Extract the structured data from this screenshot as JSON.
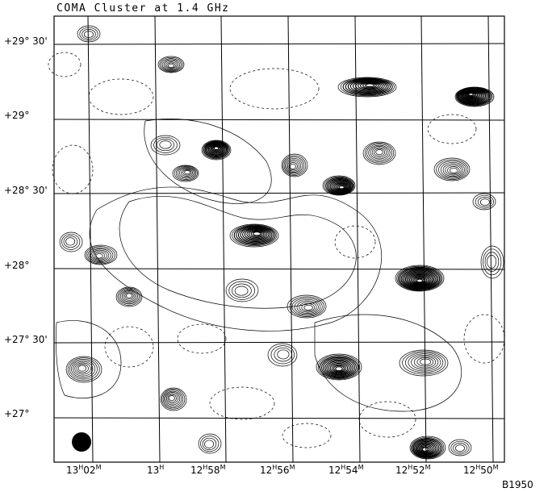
{
  "title": "COMA Cluster at 1.4 GHz",
  "epoch": "B1950",
  "dec_labels": [
    "+29° 30'",
    "+29°",
    "+28° 30'",
    "+28°",
    "+27° 30'",
    "+27°"
  ],
  "ra_labels": [
    {
      "h": "13",
      "m": "02",
      "text": "13H02M"
    },
    {
      "h": "13",
      "m": "",
      "text": "13H"
    },
    {
      "h": "12",
      "m": "58",
      "text": "12H58M"
    },
    {
      "h": "12",
      "m": "56",
      "text": "12H56M"
    },
    {
      "h": "12",
      "m": "54",
      "text": "12H54M"
    },
    {
      "h": "12",
      "m": "52",
      "text": "12H52M"
    },
    {
      "h": "12",
      "m": "50",
      "text": "12H50M"
    }
  ],
  "colors": {
    "ink": "#000000",
    "background": "#ffffff"
  },
  "beam_marker": "filled-circle-bottom-left"
}
